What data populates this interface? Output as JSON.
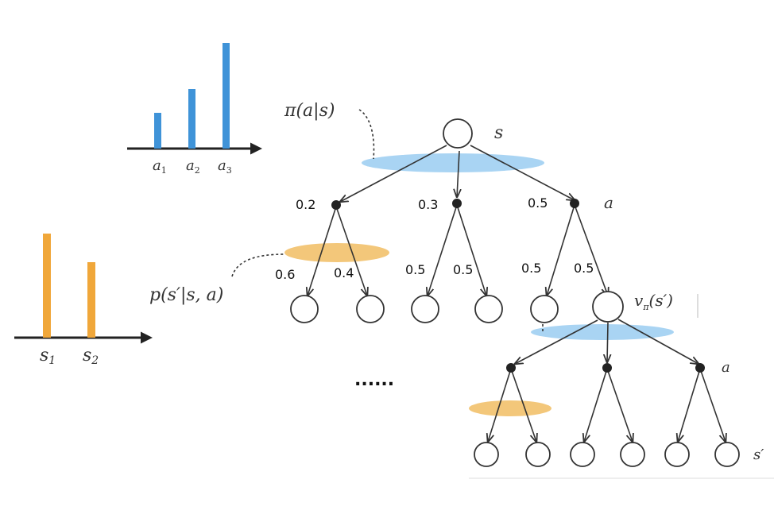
{
  "top_panel": {
    "action_dist": {
      "labels": [
        "a",
        "a",
        "a"
      ],
      "subscripts": [
        "1",
        "2",
        "3"
      ],
      "values": [
        3,
        5,
        9
      ],
      "color": "#3f93d8"
    },
    "state_dist": {
      "labels": [
        "s",
        "s"
      ],
      "subscripts": [
        "1",
        "2"
      ],
      "values": [
        9,
        7
      ],
      "color": "#f0a73a"
    }
  },
  "labels": {
    "policy": "π(a|s)",
    "transition": "p(s′|s, a)",
    "root_state": "s",
    "action": "a",
    "value": "vπ(s′)",
    "value_main": "v",
    "value_sub": "π",
    "value_arg": "(s′)",
    "action2": "a",
    "next_state": "s′",
    "ellipsis": "......"
  },
  "action_probs": [
    "0.2",
    "0.3",
    "0.5"
  ],
  "transition_probs": [
    "0.6",
    "0.4",
    "0.5",
    "0.5",
    "0.5",
    "0.5"
  ],
  "colors": {
    "policy_ellipse": "#a9d4f3",
    "transition_ellipse": "#f3c77a"
  }
}
